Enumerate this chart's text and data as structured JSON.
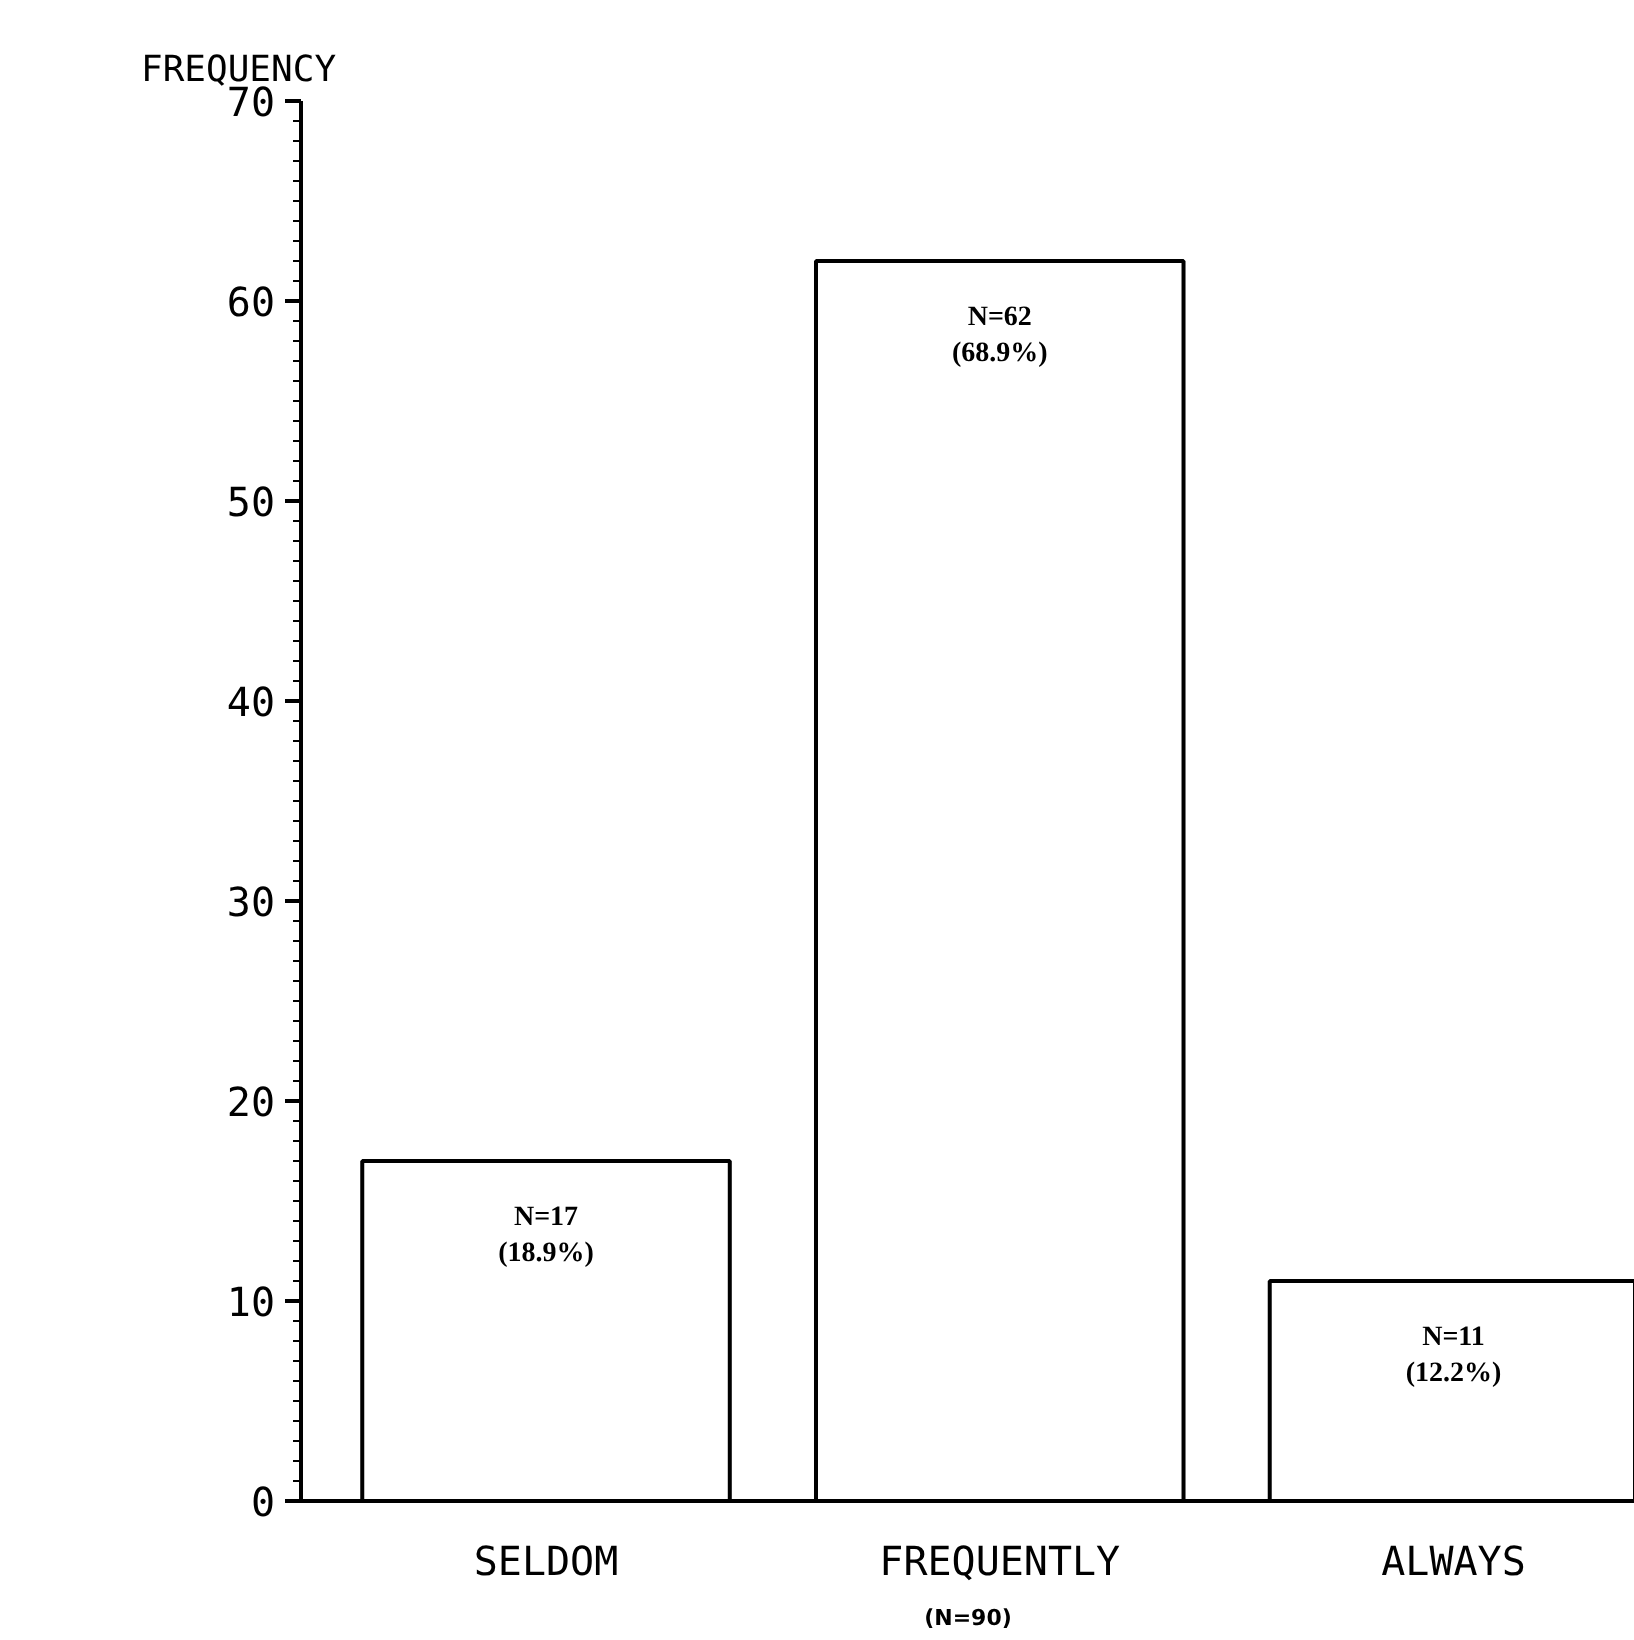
{
  "chart_data": {
    "type": "bar",
    "ylabel": "FREQUENCY",
    "categories": [
      "SELDOM",
      "FREQUENTLY",
      "ALWAYS"
    ],
    "values": [
      17,
      62,
      11
    ],
    "color": "#ffffff",
    "value_labels": [
      "N=17\n(18.9%)",
      "N=62\n(68.9%)",
      "N=11\n(12.2%)"
    ],
    "annotations": [
      "(N=90)"
    ],
    "ylim": [
      0,
      70
    ],
    "yticks": [
      0,
      10,
      20,
      30,
      40,
      50,
      60,
      70
    ],
    "grid": false
  }
}
